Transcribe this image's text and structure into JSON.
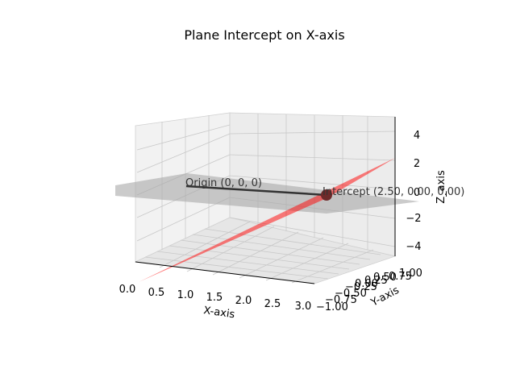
{
  "chart_data": {
    "type": "3d-surface",
    "title": "Plane Intercept on X-axis",
    "xlabel": "X-axis",
    "ylabel": "Y-axis",
    "zlabel": "Z_axis",
    "xlim": [
      0,
      3
    ],
    "ylim": [
      -1,
      1
    ],
    "zlim": [
      -5,
      5
    ],
    "x_ticks": [
      "0.0",
      "0.5",
      "1.0",
      "1.5",
      "2.0",
      "2.5",
      "3.0"
    ],
    "y_ticks": [
      "−1.00",
      "−0.75",
      "−0.50",
      "−0.25",
      "0.00",
      "0.25",
      "0.50",
      "0.75",
      "1.00"
    ],
    "z_ticks": [
      "−4",
      "−2",
      "0",
      "2",
      "4"
    ],
    "grid": true,
    "surfaces": [
      {
        "kind": "plane",
        "equation": "z = 2x - 5",
        "color": "#ff0000",
        "alpha": 0.5
      },
      {
        "kind": "plane",
        "equation": "z = 0",
        "color": "#808080",
        "alpha": 0.4
      }
    ],
    "line": {
      "from": [
        0,
        0,
        0
      ],
      "to": [
        2.5,
        0,
        0
      ],
      "color": "#000000"
    },
    "points": [
      {
        "x": 2.5,
        "y": 0,
        "z": 0,
        "color": "#8b0000"
      }
    ],
    "annotations": [
      {
        "text": "Origin (0, 0, 0)"
      },
      {
        "text": "Intercept (2.50, 0.00, 0.00)"
      }
    ]
  }
}
